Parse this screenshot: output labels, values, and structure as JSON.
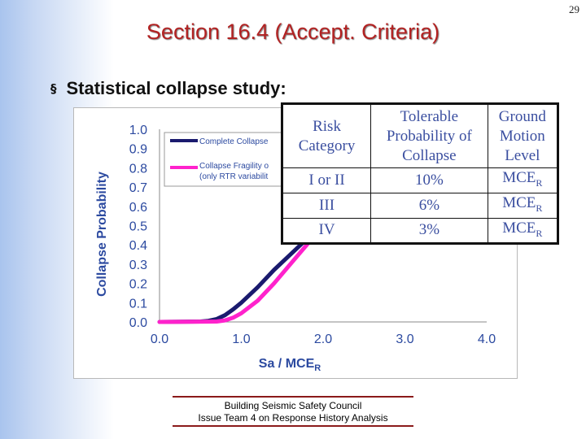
{
  "page_number": "29",
  "slide_title": "Section 16.4 (Accept. Criteria)",
  "bullet": {
    "icon": "square-bullet-icon",
    "text": "Statistical collapse study:"
  },
  "chart_data": {
    "type": "line",
    "title": "",
    "xlabel": "Sa / MCE",
    "xlabel_subscript": "R",
    "ylabel": "Collapse Probability",
    "xlim": [
      0,
      4
    ],
    "ylim": [
      0,
      1
    ],
    "x_ticks": [
      "0.0",
      "1.0",
      "2.0",
      "3.0",
      "4.0"
    ],
    "y_ticks": [
      "0.0",
      "0.1",
      "0.2",
      "0.3",
      "0.4",
      "0.5",
      "0.6",
      "0.7",
      "0.8",
      "0.9",
      "1.0"
    ],
    "grid": false,
    "legend_position": "top-left",
    "series": [
      {
        "name": "Complete Collapse",
        "color": "#1a1a6e",
        "x": [
          0,
          0.5,
          0.6,
          0.7,
          0.8,
          0.9,
          1.0,
          1.2,
          1.4,
          1.6,
          1.8,
          2.0,
          2.1
        ],
        "y": [
          0,
          0.002,
          0.006,
          0.015,
          0.035,
          0.065,
          0.1,
          0.18,
          0.27,
          0.35,
          0.43,
          0.5,
          0.56
        ]
      },
      {
        "name": "Collapse Fragility o",
        "name_line2": "(only RTR variabilit",
        "color": "#ff22cc",
        "x": [
          0,
          0.7,
          0.8,
          0.9,
          1.0,
          1.2,
          1.4,
          1.6,
          1.8,
          2.0,
          2.1
        ],
        "y": [
          0,
          0.002,
          0.008,
          0.022,
          0.045,
          0.11,
          0.2,
          0.3,
          0.4,
          0.5,
          0.56
        ]
      }
    ]
  },
  "table": {
    "headers": [
      [
        "Risk",
        "Category"
      ],
      [
        "Tolerable",
        "Probability of",
        "Collapse"
      ],
      [
        "Ground",
        "Motion",
        "Level"
      ]
    ],
    "rows": [
      [
        "I or II",
        "10%",
        "MCE",
        "R"
      ],
      [
        "III",
        "6%",
        "MCE",
        "R"
      ],
      [
        "IV",
        "3%",
        "MCE",
        "R"
      ]
    ]
  },
  "footer": {
    "line1": "Building Seismic Safety Council",
    "line2": "Issue Team 4 on Response History Analysis"
  }
}
